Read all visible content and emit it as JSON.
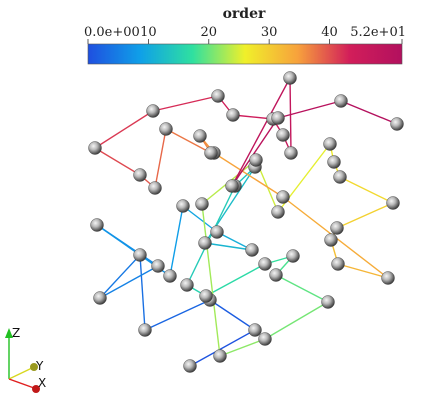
{
  "colorbar": {
    "title": "order",
    "ticks": [
      "0.0e+00",
      "10",
      "20",
      "30",
      "40",
      "5.2e+01"
    ],
    "tick_values": [
      0,
      10,
      20,
      30,
      40,
      52
    ],
    "range": [
      0,
      52
    ],
    "colormap": [
      "#1f4fe0",
      "#0fa0e8",
      "#2fe0a0",
      "#f0f02a",
      "#f7a23c",
      "#d21e5a",
      "#b2105e"
    ]
  },
  "axes_triad": {
    "z": "Z",
    "y": "Y",
    "x": "X",
    "colors": {
      "z": "#22c022",
      "y": "#d8d820",
      "x": "#e02020"
    }
  },
  "chain": {
    "node_count": 53,
    "edge_count": 52,
    "node_color": "#8a8a8a",
    "order_min": 0,
    "order_max": 52
  }
}
